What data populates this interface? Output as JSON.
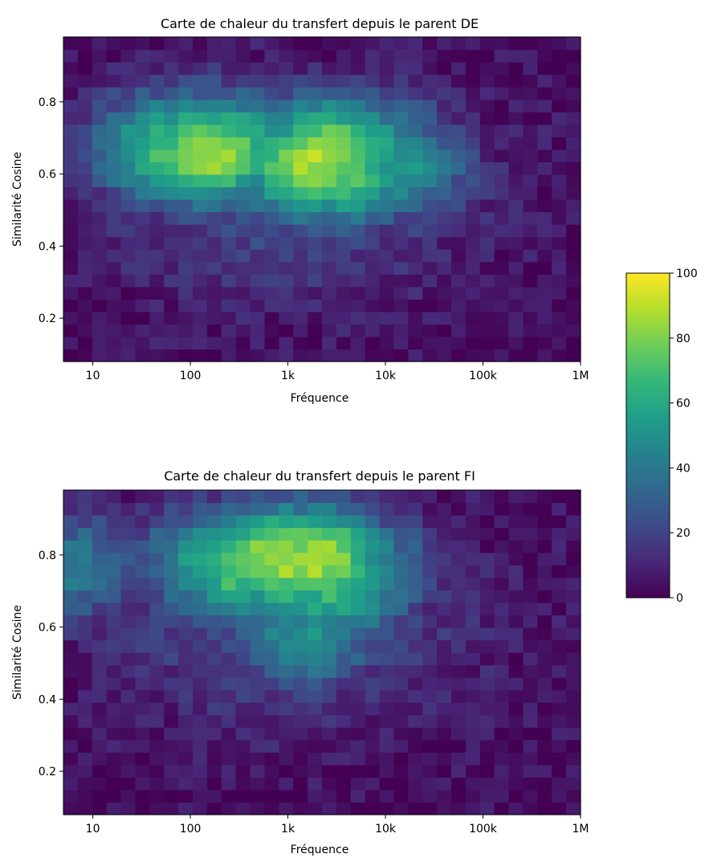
{
  "chart_data": [
    {
      "type": "heatmap",
      "title": "Carte de chaleur du transfert depuis le parent DE",
      "xlabel": "Fréquence",
      "ylabel": "Similarité Cosine",
      "x_scale": "log",
      "xlim": [
        5,
        1000000
      ],
      "ylim": [
        0.08,
        0.98
      ],
      "x_ticks": [
        10,
        100,
        1000,
        10000,
        100000,
        1000000
      ],
      "x_tick_labels": [
        "10",
        "100",
        "1k",
        "10k",
        "100k",
        "1M"
      ],
      "y_ticks": [
        0.2,
        0.4,
        0.6,
        0.8
      ],
      "y_tick_labels": [
        "0.2",
        "0.4",
        "0.6",
        "0.8"
      ],
      "colormap": "viridis",
      "vmin": 0,
      "vmax": 100,
      "grid": false,
      "hotspots": [
        {
          "x": 150,
          "y": 0.66,
          "value": 100
        },
        {
          "x": 2500,
          "y": 0.66,
          "value": 98
        },
        {
          "x": 1700,
          "y": 0.63,
          "value": 100
        },
        {
          "x": 60,
          "y": 0.67,
          "value": 78
        },
        {
          "x": 260,
          "y": 0.67,
          "value": 82
        },
        {
          "x": 3500,
          "y": 0.61,
          "value": 85
        },
        {
          "x": 1000,
          "y": 0.62,
          "value": 72
        },
        {
          "x": 12000,
          "y": 0.62,
          "value": 60
        },
        {
          "x": 7000,
          "y": 0.67,
          "value": 62
        }
      ]
    },
    {
      "type": "heatmap",
      "title": "Carte de chaleur du transfert depuis le parent FI",
      "xlabel": "Fréquence",
      "ylabel": "Similarité Cosine",
      "x_scale": "log",
      "xlim": [
        5,
        1000000
      ],
      "ylim": [
        0.08,
        0.98
      ],
      "x_ticks": [
        10,
        100,
        1000,
        10000,
        100000,
        1000000
      ],
      "x_tick_labels": [
        "10",
        "100",
        "1k",
        "10k",
        "100k",
        "1M"
      ],
      "y_ticks": [
        0.2,
        0.4,
        0.6,
        0.8
      ],
      "y_tick_labels": [
        "0.2",
        "0.4",
        "0.6",
        "0.8"
      ],
      "colormap": "viridis",
      "vmin": 0,
      "vmax": 100,
      "grid": false,
      "hotspots": [
        {
          "x": 800,
          "y": 0.79,
          "value": 100
        },
        {
          "x": 1900,
          "y": 0.79,
          "value": 100
        },
        {
          "x": 1300,
          "y": 0.77,
          "value": 95
        },
        {
          "x": 330,
          "y": 0.76,
          "value": 80
        },
        {
          "x": 2500,
          "y": 0.75,
          "value": 85
        },
        {
          "x": 3000,
          "y": 0.71,
          "value": 75
        },
        {
          "x": 180,
          "y": 0.78,
          "value": 65
        },
        {
          "x": 5000,
          "y": 0.76,
          "value": 60
        },
        {
          "x": 1500,
          "y": 0.58,
          "value": 55
        },
        {
          "x": 6,
          "y": 0.77,
          "value": 45
        }
      ]
    }
  ],
  "colorbar": {
    "ticks": [
      0,
      20,
      40,
      60,
      80,
      100
    ],
    "tick_labels": [
      "0",
      "20",
      "40",
      "60",
      "80",
      "100"
    ],
    "colormap": "viridis"
  }
}
